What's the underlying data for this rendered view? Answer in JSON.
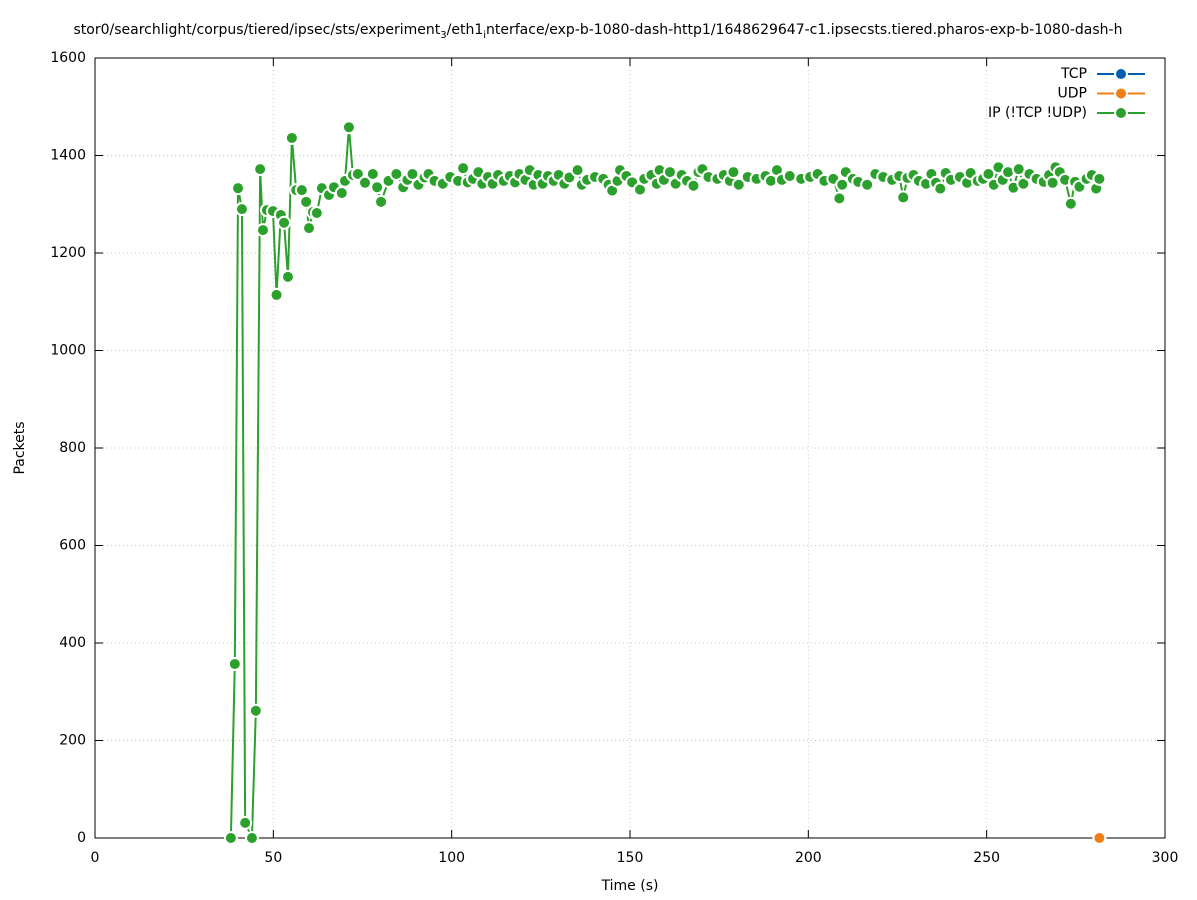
{
  "chart_data": {
    "type": "line",
    "title_parts": [
      "stor0/searchlight/corpus/tiered/ipsec/sts/experiment",
      "3",
      "/eth1",
      "i",
      "nterface/exp-b-1080-dash-http1/1648629647-c1.ipsecsts.tiered.pharos-exp-b-1080-dash-h"
    ],
    "x_label": "Time (s)",
    "y_label": "Packets",
    "xlim": [
      0,
      300
    ],
    "xticks": [
      0,
      50,
      100,
      150,
      200,
      250,
      300
    ],
    "ylim": [
      0,
      1600
    ],
    "yticks": [
      0,
      200,
      400,
      600,
      800,
      1000,
      1200,
      1400,
      1600
    ],
    "grid": true,
    "legend": "top-right",
    "series": [
      {
        "name": "TCP",
        "color": "#0060ad",
        "x": [],
        "values": []
      },
      {
        "name": "UDP",
        "color": "#f07f17",
        "x": [
          281.6
        ],
        "values": [
          0
        ]
      },
      {
        "name": "IP (!TCP  !UDP)",
        "color": "#2ca02c",
        "x": [
          38.1,
          39.2,
          40.1,
          41.2,
          42.1,
          44.0,
          45.1,
          46.3,
          47.1,
          48.2,
          49.9,
          50.9,
          52.1,
          53.0,
          54.1,
          55.2,
          56.4,
          58.0,
          59.2,
          60.0,
          61.1,
          62.2,
          63.6,
          65.6,
          67.0,
          69.2,
          70.1,
          71.2,
          72.3,
          73.7,
          75.7,
          77.9,
          79.1,
          80.2,
          82.3,
          84.5,
          86.4,
          87.6,
          89.0,
          90.7,
          92.4,
          93.5,
          95.2,
          97.5,
          99.6,
          101.8,
          103.2,
          104.5,
          106.0,
          107.5,
          108.6,
          110.2,
          111.5,
          113.0,
          114.6,
          116.3,
          117.8,
          119.0,
          120.7,
          121.9,
          123.0,
          124.3,
          125.5,
          127.0,
          128.6,
          130.0,
          131.6,
          133.0,
          135.3,
          136.5,
          138.0,
          140.2,
          142.5,
          144.0,
          145.0,
          146.5,
          147.2,
          149.0,
          150.6,
          152.8,
          154.0,
          156.0,
          157.5,
          158.3,
          159.5,
          161.2,
          162.8,
          164.5,
          166.0,
          167.8,
          169.2,
          170.3,
          172.0,
          174.5,
          176.3,
          178.0,
          179.0,
          180.5,
          183.0,
          185.5,
          188.0,
          189.5,
          191.2,
          192.6,
          194.8,
          198.0,
          200.5,
          202.6,
          204.5,
          207.0,
          208.7,
          209.5,
          210.5,
          212.5,
          214.0,
          216.5,
          218.8,
          221.0,
          223.5,
          225.5,
          226.6,
          227.8,
          229.5,
          231.0,
          233.0,
          234.5,
          235.8,
          237.0,
          238.5,
          240.0,
          242.5,
          244.5,
          245.5,
          247.5,
          249.0,
          250.5,
          252.0,
          253.3,
          254.5,
          256.0,
          257.5,
          259.0,
          260.3,
          262.0,
          264.0,
          266.0,
          267.5,
          268.5,
          269.3,
          270.5,
          272.0,
          273.6,
          274.8,
          276.0,
          278.0,
          279.5,
          280.7,
          281.6
        ],
        "values": [
          0,
          357,
          1333,
          1290,
          31,
          0,
          261,
          1372,
          1247,
          1288,
          1286,
          1114,
          1278,
          1262,
          1151,
          1436,
          1329,
          1329,
          1305,
          1251,
          1284,
          1282,
          1333,
          1319,
          1335,
          1323,
          1348,
          1458,
          1360,
          1362,
          1344,
          1362,
          1335,
          1305,
          1348,
          1362,
          1335,
          1350,
          1362,
          1340,
          1355,
          1362,
          1348,
          1342,
          1356,
          1348,
          1374,
          1345,
          1352,
          1366,
          1342,
          1356,
          1342,
          1360,
          1348,
          1358,
          1345,
          1362,
          1350,
          1370,
          1340,
          1360,
          1342,
          1358,
          1348,
          1360,
          1342,
          1355,
          1370,
          1340,
          1350,
          1356,
          1352,
          1340,
          1328,
          1348,
          1370,
          1358,
          1345,
          1330,
          1352,
          1360,
          1342,
          1370,
          1350,
          1366,
          1342,
          1360,
          1348,
          1338,
          1366,
          1372,
          1356,
          1352,
          1360,
          1348,
          1366,
          1340,
          1356,
          1352,
          1358,
          1348,
          1370,
          1350,
          1358,
          1352,
          1356,
          1362,
          1348,
          1352,
          1312,
          1340,
          1366,
          1352,
          1346,
          1340,
          1362,
          1356,
          1350,
          1358,
          1314,
          1354,
          1360,
          1348,
          1342,
          1362,
          1344,
          1332,
          1364,
          1350,
          1356,
          1344,
          1364,
          1348,
          1352,
          1362,
          1340,
          1376,
          1350,
          1366,
          1334,
          1372,
          1342,
          1362,
          1352,
          1346,
          1360,
          1344,
          1376,
          1366,
          1350,
          1301,
          1346,
          1336,
          1352,
          1360,
          1332,
          1352
        ]
      }
    ]
  }
}
